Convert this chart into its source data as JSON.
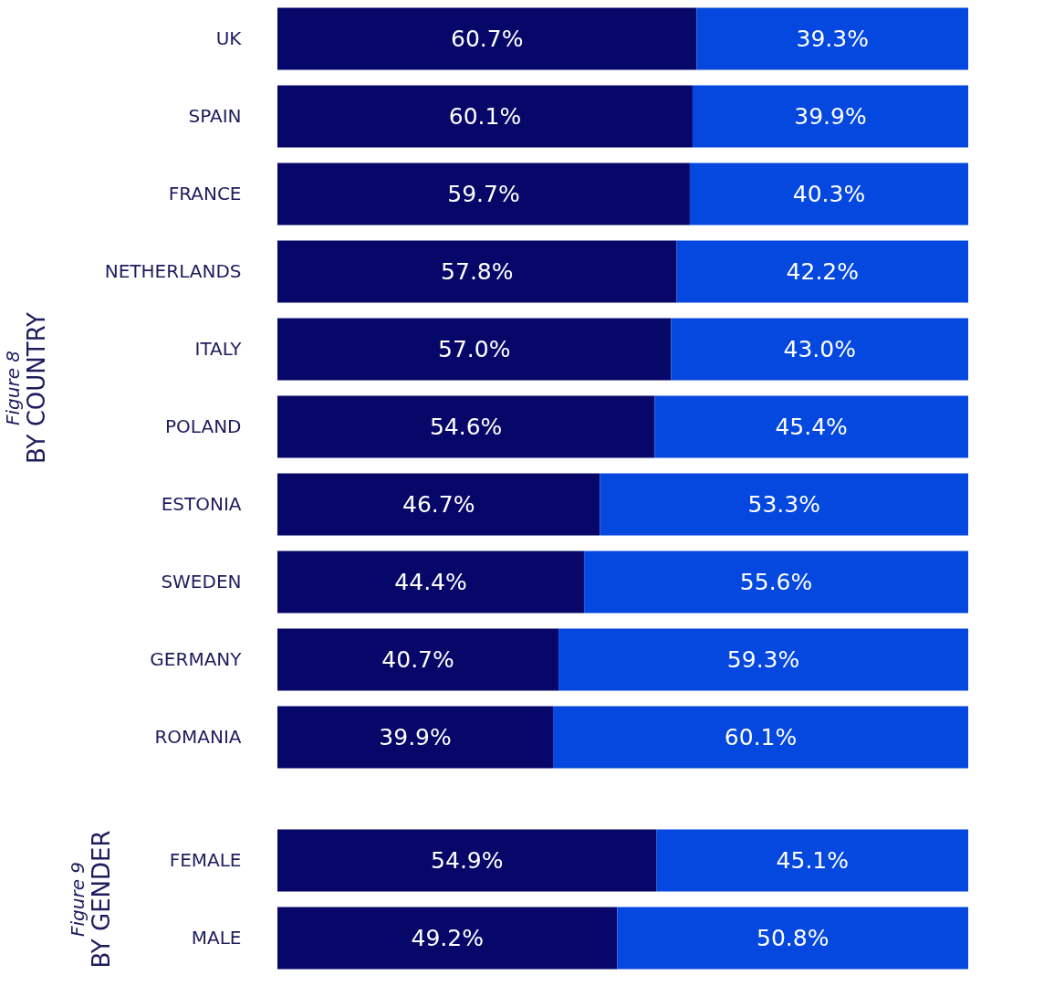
{
  "chart_data": [
    {
      "type": "bar",
      "orientation": "horizontal",
      "stacked": true,
      "title": "Figure 8",
      "subtitle": "BY COUNTRY",
      "categories": [
        "UK",
        "SPAIN",
        "FRANCE",
        "NETHERLANDS",
        "ITALY",
        "POLAND",
        "ESTONIA",
        "SWEDEN",
        "GERMANY",
        "ROMANIA"
      ],
      "tick_labels": "y",
      "legend": false,
      "series": [
        {
          "color": "#07076a",
          "values": [
            60.7,
            60.1,
            59.7,
            57.8,
            57.0,
            54.6,
            46.7,
            44.4,
            40.7,
            39.9
          ],
          "value_labels": [
            "60.7%",
            "60.1%",
            "59.7%",
            "57.8%",
            "57.0%",
            "54.6%",
            "46.7%",
            "44.4%",
            "40.7%",
            "39.9%"
          ]
        },
        {
          "color": "#0448e0",
          "values": [
            39.3,
            39.9,
            40.3,
            42.2,
            43.0,
            45.4,
            53.3,
            55.6,
            59.3,
            60.1
          ],
          "value_labels": [
            "39.3%",
            "39.9%",
            "40.3%",
            "42.2%",
            "43.0%",
            "45.4%",
            "53.3%",
            "55.6%",
            "59.3%",
            "60.1%"
          ]
        }
      ]
    },
    {
      "type": "bar",
      "orientation": "horizontal",
      "stacked": true,
      "title": "Figure 9",
      "subtitle": "BY GENDER",
      "categories": [
        "FEMALE",
        "MALE"
      ],
      "tick_labels": "y",
      "legend": false,
      "series": [
        {
          "color": "#07076a",
          "values": [
            54.9,
            49.2
          ],
          "value_labels": [
            "54.9%",
            "49.2%"
          ]
        },
        {
          "color": "#0448e0",
          "values": [
            45.1,
            50.8
          ],
          "value_labels": [
            "45.1%",
            "50.8%"
          ]
        }
      ]
    }
  ]
}
